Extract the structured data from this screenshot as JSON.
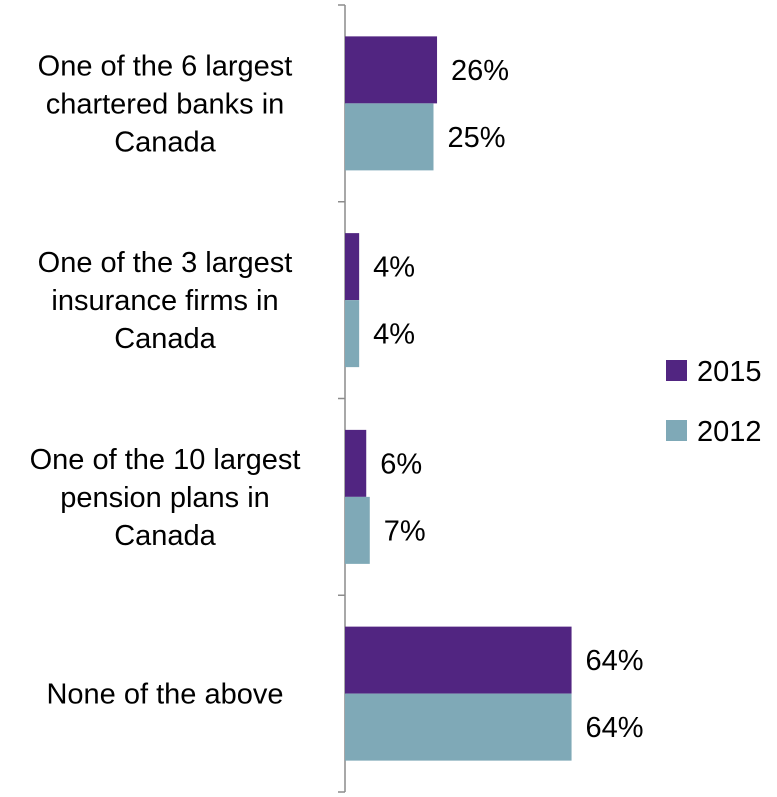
{
  "chart_data": {
    "type": "bar",
    "orientation": "horizontal",
    "categories": [
      [
        "One of the 6 largest",
        "chartered banks in",
        "Canada"
      ],
      [
        "One of the 3 largest",
        "insurance firms in",
        "Canada"
      ],
      [
        "One of the 10 largest",
        "pension plans in",
        "Canada"
      ],
      [
        "None of the above"
      ]
    ],
    "series": [
      {
        "name": "2015",
        "color": "#512581",
        "values": [
          26,
          4,
          6,
          64
        ],
        "labels": [
          "26%",
          "4%",
          "6%",
          "64%"
        ]
      },
      {
        "name": "2012",
        "color": "#7fa9b7",
        "values": [
          25,
          4,
          7,
          64
        ],
        "labels": [
          "25%",
          "4%",
          "7%",
          "64%"
        ]
      }
    ],
    "value_unit": "%",
    "title": "",
    "xlabel": "",
    "ylabel": "",
    "xlim": [
      0,
      100
    ],
    "grid": false,
    "legend": "right"
  }
}
